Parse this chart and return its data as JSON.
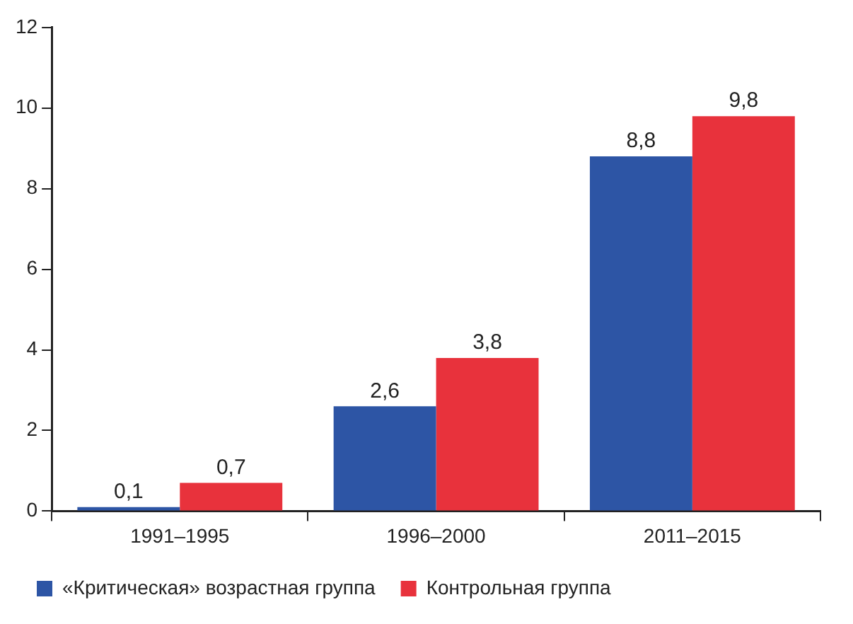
{
  "chart_data": {
    "type": "bar",
    "categories": [
      "1991–1995",
      "1996–2000",
      "2011–2015"
    ],
    "series": [
      {
        "name": "«Критическая» возрастная группа",
        "color": "#2d55a5",
        "values": [
          0.1,
          2.6,
          8.8
        ],
        "value_labels": [
          "0,1",
          "2,6",
          "8,8"
        ]
      },
      {
        "name": "Контрольная группа",
        "color": "#e8323c",
        "values": [
          0.7,
          3.8,
          9.8
        ],
        "value_labels": [
          "0,7",
          "3,8",
          "9,8"
        ]
      }
    ],
    "ylim": [
      0,
      12
    ],
    "yticks": [
      0,
      2,
      4,
      6,
      8,
      10,
      12
    ],
    "grid": false,
    "legend": "bottom"
  }
}
